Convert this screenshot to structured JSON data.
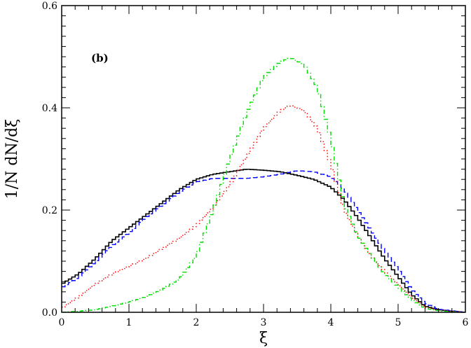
{
  "chart_data": {
    "type": "line",
    "panel_label": "(b)",
    "xlabel": "ξ",
    "ylabel": "1/N  dN/dξ",
    "xlim": [
      0,
      6
    ],
    "ylim": [
      0,
      0.6
    ],
    "x_ticks": [
      0,
      1,
      2,
      3,
      4,
      5,
      6
    ],
    "x_tick_labels": [
      "0",
      "1",
      "2",
      "3",
      "4",
      "5",
      "6"
    ],
    "y_ticks": [
      0,
      0.2,
      0.4,
      0.6
    ],
    "y_tick_labels": [
      "0.0",
      "0.2",
      "0.4",
      "0.6"
    ],
    "grid": false,
    "legend": "none",
    "series": [
      {
        "color": "#000000",
        "style": "solid",
        "points": [
          [
            0,
            0.055
          ],
          [
            0.25,
            0.075
          ],
          [
            0.5,
            0.105
          ],
          [
            0.75,
            0.14
          ],
          [
            1.0,
            0.165
          ],
          [
            1.25,
            0.19
          ],
          [
            1.5,
            0.215
          ],
          [
            1.75,
            0.24
          ],
          [
            2.0,
            0.26
          ],
          [
            2.25,
            0.27
          ],
          [
            2.5,
            0.275
          ],
          [
            2.75,
            0.28
          ],
          [
            3.0,
            0.278
          ],
          [
            3.25,
            0.275
          ],
          [
            3.5,
            0.268
          ],
          [
            3.75,
            0.26
          ],
          [
            4.0,
            0.245
          ],
          [
            4.2,
            0.22
          ],
          [
            4.4,
            0.185
          ],
          [
            4.6,
            0.145
          ],
          [
            4.8,
            0.105
          ],
          [
            5.0,
            0.07
          ],
          [
            5.2,
            0.035
          ],
          [
            5.4,
            0.012
          ],
          [
            5.6,
            0.005
          ],
          [
            5.8,
            0.002
          ],
          [
            6.0,
            0.0
          ]
        ]
      },
      {
        "color": "#0000ff",
        "style": "dashed",
        "points": [
          [
            0,
            0.048
          ],
          [
            0.25,
            0.068
          ],
          [
            0.5,
            0.098
          ],
          [
            0.75,
            0.13
          ],
          [
            1.0,
            0.155
          ],
          [
            1.25,
            0.185
          ],
          [
            1.5,
            0.21
          ],
          [
            1.75,
            0.235
          ],
          [
            2.0,
            0.255
          ],
          [
            2.25,
            0.262
          ],
          [
            2.5,
            0.262
          ],
          [
            2.75,
            0.262
          ],
          [
            3.0,
            0.265
          ],
          [
            3.25,
            0.27
          ],
          [
            3.5,
            0.277
          ],
          [
            3.75,
            0.275
          ],
          [
            4.0,
            0.265
          ],
          [
            4.2,
            0.24
          ],
          [
            4.4,
            0.2
          ],
          [
            4.6,
            0.16
          ],
          [
            4.8,
            0.12
          ],
          [
            5.0,
            0.085
          ],
          [
            5.2,
            0.045
          ],
          [
            5.4,
            0.018
          ],
          [
            5.6,
            0.006
          ],
          [
            5.8,
            0.003
          ],
          [
            6.0,
            0.0
          ]
        ]
      },
      {
        "color": "#ff0000",
        "style": "dotted",
        "points": [
          [
            0,
            0.008
          ],
          [
            0.25,
            0.03
          ],
          [
            0.5,
            0.055
          ],
          [
            0.75,
            0.075
          ],
          [
            1.0,
            0.09
          ],
          [
            1.25,
            0.105
          ],
          [
            1.5,
            0.125
          ],
          [
            1.75,
            0.145
          ],
          [
            2.0,
            0.17
          ],
          [
            2.25,
            0.205
          ],
          [
            2.5,
            0.25
          ],
          [
            2.75,
            0.305
          ],
          [
            3.0,
            0.36
          ],
          [
            3.25,
            0.395
          ],
          [
            3.4,
            0.405
          ],
          [
            3.6,
            0.395
          ],
          [
            3.8,
            0.36
          ],
          [
            4.0,
            0.29
          ],
          [
            4.2,
            0.2
          ],
          [
            4.4,
            0.15
          ],
          [
            4.6,
            0.11
          ],
          [
            4.8,
            0.08
          ],
          [
            5.0,
            0.055
          ],
          [
            5.2,
            0.03
          ],
          [
            5.4,
            0.01
          ],
          [
            5.6,
            0.004
          ],
          [
            5.8,
            0.002
          ],
          [
            6.0,
            0.0
          ]
        ]
      },
      {
        "color": "#00dd00",
        "style": "dash-dot",
        "points": [
          [
            0,
            0.0
          ],
          [
            0.25,
            0.002
          ],
          [
            0.5,
            0.005
          ],
          [
            0.75,
            0.012
          ],
          [
            1.0,
            0.02
          ],
          [
            1.25,
            0.03
          ],
          [
            1.5,
            0.045
          ],
          [
            1.75,
            0.065
          ],
          [
            2.0,
            0.11
          ],
          [
            2.25,
            0.2
          ],
          [
            2.5,
            0.3
          ],
          [
            2.75,
            0.39
          ],
          [
            3.0,
            0.46
          ],
          [
            3.25,
            0.49
          ],
          [
            3.4,
            0.498
          ],
          [
            3.6,
            0.485
          ],
          [
            3.8,
            0.44
          ],
          [
            4.0,
            0.34
          ],
          [
            4.2,
            0.21
          ],
          [
            4.4,
            0.15
          ],
          [
            4.6,
            0.11
          ],
          [
            4.8,
            0.075
          ],
          [
            5.0,
            0.05
          ],
          [
            5.2,
            0.025
          ],
          [
            5.4,
            0.008
          ],
          [
            5.6,
            0.003
          ],
          [
            5.8,
            0.001
          ],
          [
            6.0,
            0.0
          ]
        ]
      }
    ]
  }
}
